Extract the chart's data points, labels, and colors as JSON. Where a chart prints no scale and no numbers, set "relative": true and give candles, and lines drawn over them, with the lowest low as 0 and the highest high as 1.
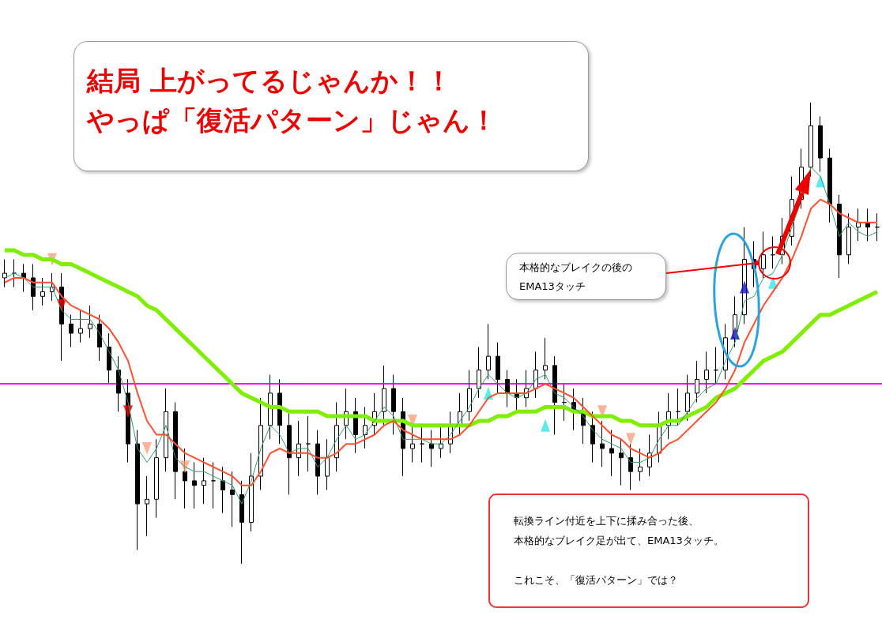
{
  "chart_data": {
    "type": "candlestick",
    "relative": true,
    "title": "結局 上がってるじゃんか！！",
    "subtitle": "やっぱ「復活パターン」じゃん！",
    "annotations": [
      "本格的なブレイクの後のEMA13タッチ",
      "転換ライン付近を上下に揉み合った後、本格的なブレイク足が出て、EMA13タッチ。",
      "これこそ、「復活パターン」では？"
    ],
    "categories": [
      null,
      null,
      null,
      null,
      null,
      null,
      null,
      null,
      null,
      null,
      null,
      null,
      null,
      null,
      null,
      null,
      null,
      null,
      null,
      null,
      null,
      null,
      null,
      null,
      null,
      null,
      null,
      null,
      null,
      null,
      null,
      null,
      null,
      null,
      null,
      null,
      null,
      null,
      null,
      null,
      null,
      null,
      null,
      null,
      null,
      null,
      null,
      null,
      null,
      null,
      null,
      null,
      null,
      null,
      null,
      null,
      null,
      null,
      null,
      null,
      null,
      null,
      null,
      null,
      null,
      null,
      null,
      null,
      null,
      null,
      null,
      null,
      null,
      null,
      null,
      null,
      null,
      null,
      null,
      null,
      null,
      null,
      null,
      null,
      null,
      null,
      null,
      null,
      null,
      null,
      null,
      null,
      null
    ],
    "ohlc": [
      [
        0.62,
        0.66,
        0.6,
        0.63
      ],
      [
        0.63,
        0.66,
        0.6,
        0.63
      ],
      [
        0.63,
        0.65,
        0.59,
        0.62
      ],
      [
        0.62,
        0.65,
        0.55,
        0.58
      ],
      [
        0.58,
        0.62,
        0.56,
        0.59
      ],
      [
        0.59,
        0.63,
        0.57,
        0.6
      ],
      [
        0.6,
        0.63,
        0.44,
        0.52
      ],
      [
        0.52,
        0.54,
        0.47,
        0.5
      ],
      [
        0.5,
        0.55,
        0.48,
        0.51
      ],
      [
        0.51,
        0.56,
        0.49,
        0.52
      ],
      [
        0.52,
        0.54,
        0.44,
        0.47
      ],
      [
        0.47,
        0.5,
        0.39,
        0.42
      ],
      [
        0.42,
        0.45,
        0.33,
        0.37
      ],
      [
        0.37,
        0.4,
        0.22,
        0.26
      ],
      [
        0.26,
        0.29,
        0.03,
        0.13
      ],
      [
        0.13,
        0.19,
        0.06,
        0.14
      ],
      [
        0.14,
        0.27,
        0.1,
        0.23
      ],
      [
        0.23,
        0.38,
        0.2,
        0.33
      ],
      [
        0.33,
        0.35,
        0.14,
        0.2
      ],
      [
        0.2,
        0.25,
        0.12,
        0.18
      ],
      [
        0.18,
        0.22,
        0.12,
        0.17
      ],
      [
        0.17,
        0.23,
        0.13,
        0.18
      ],
      [
        0.18,
        0.22,
        0.12,
        0.18
      ],
      [
        0.18,
        0.21,
        0.11,
        0.16
      ],
      [
        0.16,
        0.2,
        0.08,
        0.15
      ],
      [
        0.15,
        0.18,
        0.0,
        0.09
      ],
      [
        0.09,
        0.24,
        0.07,
        0.19
      ],
      [
        0.19,
        0.36,
        0.16,
        0.3
      ],
      [
        0.3,
        0.41,
        0.27,
        0.37
      ],
      [
        0.37,
        0.4,
        0.26,
        0.3
      ],
      [
        0.3,
        0.33,
        0.15,
        0.23
      ],
      [
        0.23,
        0.31,
        0.19,
        0.26
      ],
      [
        0.26,
        0.32,
        0.2,
        0.26
      ],
      [
        0.26,
        0.29,
        0.15,
        0.19
      ],
      [
        0.19,
        0.27,
        0.16,
        0.23
      ],
      [
        0.23,
        0.35,
        0.2,
        0.3
      ],
      [
        0.3,
        0.38,
        0.27,
        0.33
      ],
      [
        0.33,
        0.36,
        0.24,
        0.28
      ],
      [
        0.28,
        0.34,
        0.25,
        0.3
      ],
      [
        0.3,
        0.37,
        0.28,
        0.33
      ],
      [
        0.33,
        0.43,
        0.3,
        0.38
      ],
      [
        0.38,
        0.41,
        0.28,
        0.33
      ],
      [
        0.33,
        0.36,
        0.19,
        0.25
      ],
      [
        0.25,
        0.3,
        0.22,
        0.26
      ],
      [
        0.26,
        0.3,
        0.22,
        0.26
      ],
      [
        0.26,
        0.29,
        0.21,
        0.25
      ],
      [
        0.25,
        0.3,
        0.23,
        0.26
      ],
      [
        0.26,
        0.33,
        0.24,
        0.3
      ],
      [
        0.3,
        0.37,
        0.28,
        0.33
      ],
      [
        0.33,
        0.42,
        0.31,
        0.38
      ],
      [
        0.38,
        0.47,
        0.36,
        0.42
      ],
      [
        0.42,
        0.52,
        0.4,
        0.45
      ],
      [
        0.45,
        0.48,
        0.37,
        0.4
      ],
      [
        0.4,
        0.42,
        0.34,
        0.37
      ],
      [
        0.37,
        0.4,
        0.33,
        0.36
      ],
      [
        0.36,
        0.42,
        0.34,
        0.38
      ],
      [
        0.38,
        0.46,
        0.36,
        0.42
      ],
      [
        0.42,
        0.49,
        0.4,
        0.43
      ],
      [
        0.43,
        0.45,
        0.28,
        0.35
      ],
      [
        0.35,
        0.39,
        0.31,
        0.35
      ],
      [
        0.35,
        0.38,
        0.29,
        0.33
      ],
      [
        0.33,
        0.36,
        0.26,
        0.3
      ],
      [
        0.3,
        0.33,
        0.22,
        0.26
      ],
      [
        0.26,
        0.31,
        0.21,
        0.25
      ],
      [
        0.25,
        0.29,
        0.19,
        0.24
      ],
      [
        0.24,
        0.27,
        0.17,
        0.23
      ],
      [
        0.23,
        0.26,
        0.16,
        0.2
      ],
      [
        0.2,
        0.25,
        0.18,
        0.21
      ],
      [
        0.21,
        0.28,
        0.19,
        0.24
      ],
      [
        0.24,
        0.33,
        0.22,
        0.3
      ],
      [
        0.3,
        0.37,
        0.27,
        0.33
      ],
      [
        0.33,
        0.38,
        0.3,
        0.33
      ],
      [
        0.33,
        0.41,
        0.31,
        0.37
      ],
      [
        0.37,
        0.44,
        0.35,
        0.4
      ],
      [
        0.4,
        0.46,
        0.37,
        0.42
      ],
      [
        0.42,
        0.47,
        0.39,
        0.42
      ],
      [
        0.42,
        0.52,
        0.4,
        0.49
      ],
      [
        0.49,
        0.58,
        0.47,
        0.54
      ],
      [
        0.54,
        0.73,
        0.52,
        0.66
      ],
      [
        0.66,
        0.7,
        0.6,
        0.64
      ],
      [
        0.64,
        0.72,
        0.62,
        0.67
      ],
      [
        0.67,
        0.71,
        0.64,
        0.67
      ],
      [
        0.67,
        0.75,
        0.65,
        0.71
      ],
      [
        0.71,
        0.84,
        0.69,
        0.79
      ],
      [
        0.79,
        0.9,
        0.77,
        0.86
      ],
      [
        0.86,
        1.0,
        0.84,
        0.95
      ],
      [
        0.95,
        0.97,
        0.85,
        0.88
      ],
      [
        0.88,
        0.9,
        0.74,
        0.78
      ],
      [
        0.78,
        0.8,
        0.62,
        0.67
      ],
      [
        0.67,
        0.76,
        0.65,
        0.73
      ],
      [
        0.73,
        0.77,
        0.7,
        0.74
      ],
      [
        0.74,
        0.77,
        0.7,
        0.73
      ],
      [
        0.73,
        0.76,
        0.7,
        0.73
      ]
    ],
    "ref_lines": [
      {
        "axis": "y",
        "value": 0.39,
        "color": "#ff00ff"
      }
    ],
    "series": [
      {
        "type": "line",
        "color": "#80ee00",
        "marker": "none",
        "values": [
          0.68,
          0.68,
          0.67,
          0.67,
          0.66,
          0.66,
          0.65,
          0.65,
          0.64,
          0.63,
          0.62,
          0.61,
          0.6,
          0.59,
          0.58,
          0.56,
          0.55,
          0.53,
          0.51,
          0.49,
          0.47,
          0.45,
          0.43,
          0.41,
          0.39,
          0.37,
          0.36,
          0.35,
          0.34,
          0.34,
          0.33,
          0.33,
          0.33,
          0.33,
          0.32,
          0.32,
          0.32,
          0.32,
          0.32,
          0.31,
          0.31,
          0.31,
          0.31,
          0.3,
          0.3,
          0.3,
          0.3,
          0.3,
          0.3,
          0.3,
          0.31,
          0.31,
          0.32,
          0.32,
          0.33,
          0.33,
          0.33,
          0.34,
          0.34,
          0.34,
          0.33,
          0.33,
          0.32,
          0.32,
          0.32,
          0.31,
          0.31,
          0.3,
          0.3,
          0.3,
          0.31,
          0.31,
          0.32,
          0.33,
          0.34,
          0.36,
          0.37,
          0.38,
          0.4,
          0.42,
          0.44,
          0.45,
          0.46,
          0.48,
          0.5,
          0.52,
          0.54,
          0.54,
          0.55,
          0.56,
          0.57,
          0.58,
          0.59
        ]
      },
      {
        "type": "line",
        "color": "#2e9e6a",
        "marker": "none",
        "values": [
          0.62,
          0.63,
          0.62,
          0.6,
          0.6,
          0.6,
          0.55,
          0.53,
          0.53,
          0.53,
          0.5,
          0.46,
          0.42,
          0.35,
          0.25,
          0.22,
          0.25,
          0.3,
          0.23,
          0.21,
          0.2,
          0.2,
          0.19,
          0.18,
          0.17,
          0.13,
          0.18,
          0.25,
          0.3,
          0.28,
          0.24,
          0.25,
          0.25,
          0.21,
          0.23,
          0.27,
          0.3,
          0.27,
          0.28,
          0.31,
          0.34,
          0.32,
          0.27,
          0.27,
          0.27,
          0.26,
          0.26,
          0.28,
          0.31,
          0.34,
          0.38,
          0.41,
          0.39,
          0.37,
          0.36,
          0.37,
          0.4,
          0.41,
          0.37,
          0.36,
          0.34,
          0.32,
          0.29,
          0.27,
          0.26,
          0.25,
          0.22,
          0.22,
          0.23,
          0.27,
          0.3,
          0.3,
          0.33,
          0.36,
          0.38,
          0.39,
          0.44,
          0.48,
          0.57,
          0.58,
          0.62,
          0.63,
          0.67,
          0.73,
          0.79,
          0.86,
          0.84,
          0.78,
          0.71,
          0.74,
          0.72,
          0.71,
          0.72
        ]
      },
      {
        "type": "line",
        "color": "#ff5030",
        "marker": "none",
        "values": [
          0.61,
          0.62,
          0.62,
          0.61,
          0.61,
          0.61,
          0.58,
          0.56,
          0.55,
          0.54,
          0.53,
          0.51,
          0.48,
          0.44,
          0.37,
          0.31,
          0.28,
          0.28,
          0.26,
          0.24,
          0.23,
          0.22,
          0.21,
          0.2,
          0.19,
          0.17,
          0.17,
          0.2,
          0.24,
          0.25,
          0.24,
          0.24,
          0.24,
          0.23,
          0.23,
          0.24,
          0.26,
          0.26,
          0.27,
          0.28,
          0.3,
          0.31,
          0.29,
          0.28,
          0.27,
          0.27,
          0.27,
          0.27,
          0.28,
          0.3,
          0.33,
          0.36,
          0.37,
          0.37,
          0.37,
          0.37,
          0.38,
          0.39,
          0.38,
          0.37,
          0.36,
          0.34,
          0.32,
          0.3,
          0.28,
          0.27,
          0.25,
          0.24,
          0.23,
          0.24,
          0.26,
          0.27,
          0.29,
          0.31,
          0.33,
          0.35,
          0.38,
          0.42,
          0.48,
          0.52,
          0.56,
          0.59,
          0.62,
          0.66,
          0.71,
          0.77,
          0.79,
          0.78,
          0.76,
          0.75,
          0.74,
          0.74,
          0.74
        ]
      },
      {
        "type": "scatter",
        "color": "#ffa080",
        "marker": "triangle",
        "values": [
          null,
          null,
          null,
          null,
          null,
          0.66,
          null,
          null,
          null,
          null,
          null,
          null,
          null,
          null,
          null,
          0.25,
          null,
          null,
          null,
          0.21,
          null,
          null,
          null,
          null,
          null,
          null,
          null,
          null,
          null,
          null,
          null,
          null,
          null,
          null,
          null,
          null,
          null,
          null,
          null,
          null,
          null,
          null,
          null,
          0.31,
          null,
          null,
          null,
          null,
          null,
          null,
          null,
          null,
          null,
          null,
          null,
          null,
          null,
          null,
          null,
          null,
          null,
          null,
          null,
          0.33,
          null,
          null,
          0.27,
          null,
          null,
          null,
          null,
          null,
          null,
          null,
          null,
          null,
          null,
          null,
          null,
          null,
          null,
          null,
          null,
          null,
          null,
          null,
          null,
          null,
          null,
          null,
          null,
          null,
          null
        ]
      },
      {
        "type": "scatter",
        "color": "#ee0000",
        "marker": "triangle",
        "values": [
          null,
          null,
          null,
          null,
          null,
          null,
          0.56,
          null,
          null,
          null,
          null,
          null,
          null,
          0.33,
          null,
          null,
          null,
          null,
          null,
          null,
          null,
          null,
          null,
          null,
          null,
          null,
          null,
          null,
          null,
          null,
          null,
          null,
          null,
          null,
          null,
          null,
          null,
          null,
          null,
          null,
          null,
          null,
          null,
          null,
          null,
          null,
          null,
          null,
          null,
          null,
          null,
          null,
          null,
          null,
          null,
          null,
          null,
          null,
          null,
          null,
          null,
          null,
          null,
          null,
          null,
          null,
          null,
          null,
          null,
          null,
          null,
          null,
          null,
          null,
          null,
          null,
          null,
          null,
          null,
          null,
          null,
          null,
          null,
          null,
          null,
          null,
          null,
          null,
          null,
          null,
          null,
          null,
          null
        ]
      },
      {
        "type": "scatter",
        "color": "#33e6ee",
        "marker": "triangle",
        "values": [
          null,
          null,
          null,
          null,
          null,
          null,
          null,
          null,
          null,
          null,
          null,
          null,
          null,
          null,
          null,
          null,
          null,
          null,
          null,
          null,
          null,
          null,
          null,
          null,
          null,
          null,
          null,
          null,
          null,
          null,
          null,
          null,
          null,
          null,
          null,
          null,
          null,
          null,
          null,
          null,
          null,
          null,
          null,
          null,
          null,
          null,
          null,
          null,
          null,
          null,
          null,
          0.37,
          null,
          null,
          null,
          null,
          null,
          0.3,
          null,
          null,
          null,
          null,
          null,
          null,
          null,
          null,
          null,
          null,
          null,
          null,
          null,
          null,
          null,
          null,
          null,
          null,
          null,
          null,
          null,
          null,
          null,
          0.61,
          null,
          null,
          null,
          null,
          0.83,
          null,
          null,
          null,
          null,
          null,
          null
        ]
      },
      {
        "type": "scatter",
        "color": "#1010c0",
        "marker": "triangle",
        "values": [
          null,
          null,
          null,
          null,
          null,
          null,
          null,
          null,
          null,
          null,
          null,
          null,
          null,
          null,
          null,
          null,
          null,
          null,
          null,
          null,
          null,
          null,
          null,
          null,
          null,
          null,
          null,
          null,
          null,
          null,
          null,
          null,
          null,
          null,
          null,
          null,
          null,
          null,
          null,
          null,
          null,
          null,
          null,
          null,
          null,
          null,
          null,
          null,
          null,
          null,
          null,
          null,
          null,
          null,
          null,
          null,
          null,
          null,
          null,
          null,
          null,
          null,
          null,
          null,
          null,
          null,
          null,
          null,
          null,
          null,
          null,
          null,
          null,
          null,
          null,
          null,
          null,
          0.5,
          0.6,
          null,
          null,
          null,
          null,
          null,
          null,
          null,
          null,
          null,
          null,
          null,
          null,
          null,
          null
        ]
      }
    ]
  }
}
